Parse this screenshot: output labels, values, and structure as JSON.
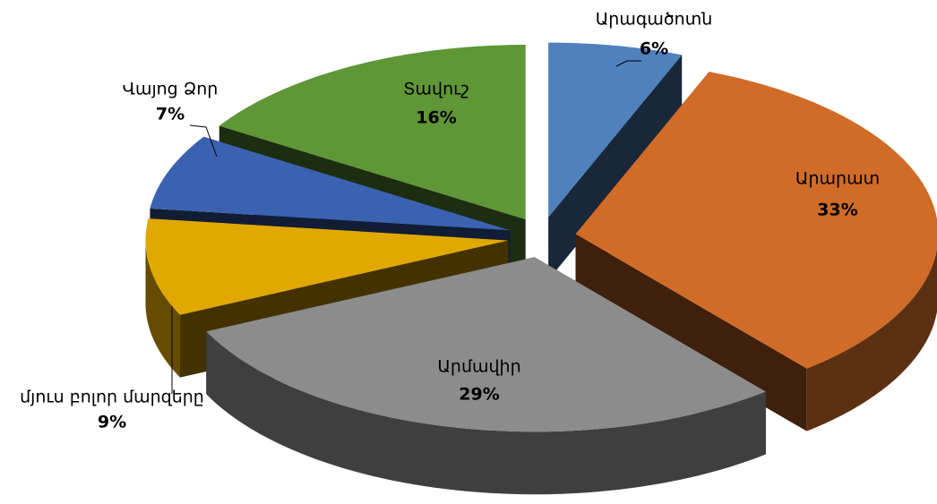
{
  "chart_data": {
    "type": "pie3d",
    "categories": [
      "Արագածոտն",
      "Արարատ",
      "Արմավիր",
      "մյուս բոլոր մարզերը",
      "Վայոց Ձոր",
      "Տավուշ"
    ],
    "values": [
      6,
      33,
      29,
      9,
      7,
      16
    ],
    "value_labels": [
      "6%",
      "33%",
      "29%",
      "9%",
      "7%",
      "16%"
    ],
    "colors": [
      "#4f81bd",
      "#d06b28",
      "#8c8c8c",
      "#e0a800",
      "#3a62b0",
      "#5f9636"
    ]
  }
}
